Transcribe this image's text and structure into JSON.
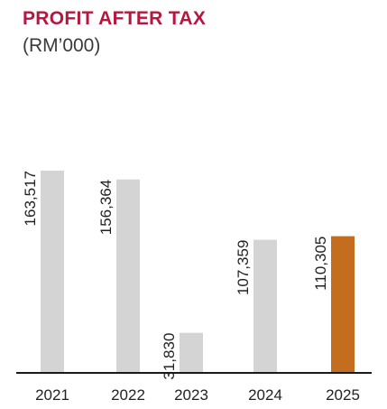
{
  "header": {
    "title": "PROFIT AFTER TAX",
    "subtitle": "(RM’000)"
  },
  "colors": {
    "title": "#b5173e",
    "bar": "#d4d4d4",
    "highlight_bar": "#c46d1e",
    "baseline": "#1a1a1a",
    "text": "#222222"
  },
  "chart_data": {
    "type": "bar",
    "title": "PROFIT AFTER TAX",
    "subtitle": "(RM’000)",
    "categories": [
      "2021",
      "2022",
      "2023",
      "2024",
      "2025"
    ],
    "values": [
      163517,
      156364,
      31830,
      107359,
      110305
    ],
    "value_labels": [
      "163,517",
      "156,364",
      "31,830",
      "107,359",
      "110,305"
    ],
    "highlight_index": 4,
    "ylim": [
      0,
      163517
    ],
    "grid": false,
    "legend": "none",
    "value_label_orientation": "vertical"
  }
}
